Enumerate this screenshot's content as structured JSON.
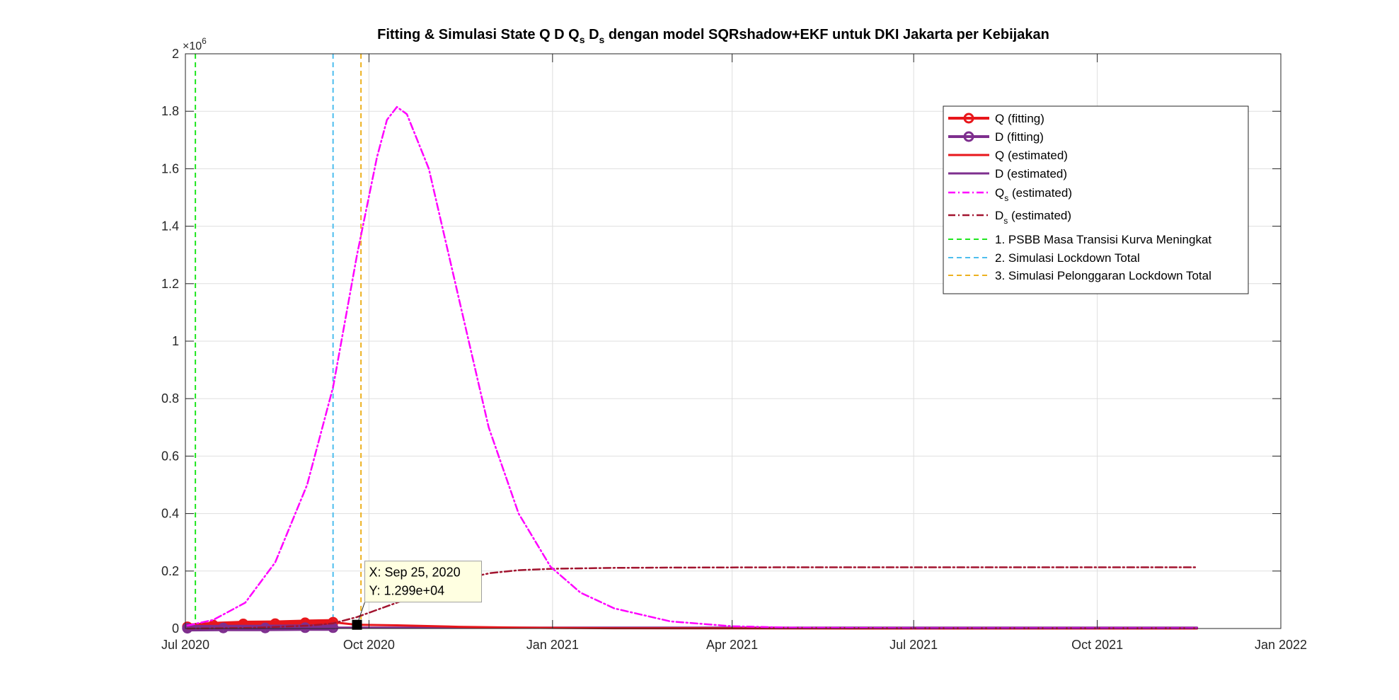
{
  "chart_data": {
    "type": "line",
    "title": {
      "prefix": "Fitting & Simulasi State  Q D Q",
      "sub1": "s",
      "mid": " D",
      "sub2": "s",
      "suffix": " dengan model SQRshadow+EKF untuk DKI Jakarta per Kebijakan"
    },
    "xlabel": "",
    "ylabel": "",
    "x_axis": {
      "type": "date",
      "range": [
        "2020-07-01",
        "2022-01-01"
      ],
      "ticks": [
        {
          "date": "2020-07-01",
          "label": "Jul 2020"
        },
        {
          "date": "2020-10-01",
          "label": "Oct 2020"
        },
        {
          "date": "2021-01-01",
          "label": "Jan 2021"
        },
        {
          "date": "2021-04-01",
          "label": "Apr 2021"
        },
        {
          "date": "2021-07-01",
          "label": "Jul 2021"
        },
        {
          "date": "2021-10-01",
          "label": "Oct 2021"
        },
        {
          "date": "2022-01-01",
          "label": "Jan 2022"
        }
      ]
    },
    "y_axis": {
      "range": [
        0,
        2
      ],
      "exponent_base": "×10",
      "exponent_power": "6",
      "ticks": [
        {
          "value": 0,
          "label": "0"
        },
        {
          "value": 0.2,
          "label": "0.2"
        },
        {
          "value": 0.4,
          "label": "0.4"
        },
        {
          "value": 0.6,
          "label": "0.6"
        },
        {
          "value": 0.8,
          "label": "0.8"
        },
        {
          "value": 1.0,
          "label": "1"
        },
        {
          "value": 1.2,
          "label": "1.2"
        },
        {
          "value": 1.4,
          "label": "1.4"
        },
        {
          "value": 1.6,
          "label": "1.6"
        },
        {
          "value": 1.8,
          "label": "1.8"
        },
        {
          "value": 2.0,
          "label": "2"
        }
      ]
    },
    "grid": true,
    "legend_position": "top-right",
    "series": [
      {
        "key": "q_fit",
        "name": "Q (fitting)",
        "name_sub": "",
        "name_suffix": "",
        "color": "#e8161b",
        "style": "solid-marker",
        "points": [
          [
            "2020-07-02",
            0.006
          ],
          [
            "2020-07-15",
            0.012
          ],
          [
            "2020-07-30",
            0.016
          ],
          [
            "2020-08-15",
            0.017
          ],
          [
            "2020-08-30",
            0.02
          ],
          [
            "2020-09-13",
            0.022
          ]
        ]
      },
      {
        "key": "d_fit",
        "name": "D (fitting)",
        "name_sub": "",
        "name_suffix": "",
        "color": "#7e2f8e",
        "style": "solid-marker",
        "points": [
          [
            "2020-07-02",
            0.001
          ],
          [
            "2020-07-20",
            0.002
          ],
          [
            "2020-08-10",
            0.002
          ],
          [
            "2020-08-30",
            0.003
          ],
          [
            "2020-09-13",
            0.003
          ]
        ]
      },
      {
        "key": "q_est",
        "name": "Q (estimated)",
        "name_sub": "",
        "name_suffix": "",
        "color": "#e8161b",
        "style": "solid",
        "points": [
          [
            "2020-07-02",
            0.006
          ],
          [
            "2020-08-01",
            0.015
          ],
          [
            "2020-09-01",
            0.02
          ],
          [
            "2020-09-13",
            0.022
          ],
          [
            "2020-09-25",
            0.013
          ],
          [
            "2020-10-15",
            0.011
          ],
          [
            "2020-11-15",
            0.006
          ],
          [
            "2020-12-15",
            0.003
          ],
          [
            "2021-02-01",
            0.001
          ],
          [
            "2021-06-01",
            0.0
          ],
          [
            "2021-11-20",
            0.0
          ]
        ]
      },
      {
        "key": "d_est",
        "name": "D (estimated)",
        "name_sub": "",
        "name_suffix": "",
        "color": "#7e2f8e",
        "style": "solid",
        "points": [
          [
            "2020-07-02",
            0.001
          ],
          [
            "2020-08-15",
            0.002
          ],
          [
            "2020-09-13",
            0.003
          ],
          [
            "2020-10-15",
            0.003
          ],
          [
            "2021-01-01",
            0.003
          ],
          [
            "2021-06-01",
            0.003
          ],
          [
            "2021-11-20",
            0.003
          ]
        ]
      },
      {
        "key": "qs_est",
        "name": "Q",
        "name_sub": "s",
        "name_suffix": " (estimated)",
        "color": "#ff00ff",
        "style": "dashdot",
        "points": [
          [
            "2020-07-02",
            0.01
          ],
          [
            "2020-07-15",
            0.03
          ],
          [
            "2020-07-31",
            0.09
          ],
          [
            "2020-08-15",
            0.23
          ],
          [
            "2020-08-31",
            0.5
          ],
          [
            "2020-09-13",
            0.84
          ],
          [
            "2020-09-25",
            1.3
          ],
          [
            "2020-10-05",
            1.64
          ],
          [
            "2020-10-10",
            1.77
          ],
          [
            "2020-10-15",
            1.815
          ],
          [
            "2020-10-20",
            1.79
          ],
          [
            "2020-10-31",
            1.6
          ],
          [
            "2020-11-15",
            1.15
          ],
          [
            "2020-11-30",
            0.7
          ],
          [
            "2020-12-15",
            0.4
          ],
          [
            "2020-12-31",
            0.215
          ],
          [
            "2021-01-15",
            0.125
          ],
          [
            "2021-02-01",
            0.07
          ],
          [
            "2021-03-01",
            0.025
          ],
          [
            "2021-04-01",
            0.008
          ],
          [
            "2021-05-01",
            0.003
          ],
          [
            "2021-07-01",
            0.001
          ],
          [
            "2021-11-20",
            0.001
          ]
        ]
      },
      {
        "key": "ds_est",
        "name": "D",
        "name_sub": "s",
        "name_suffix": " (estimated)",
        "color": "#a2142f",
        "style": "dashdot",
        "points": [
          [
            "2020-07-02",
            0.0
          ],
          [
            "2020-08-01",
            0.002
          ],
          [
            "2020-09-01",
            0.01
          ],
          [
            "2020-09-13",
            0.018
          ],
          [
            "2020-09-25",
            0.04
          ],
          [
            "2020-10-15",
            0.09
          ],
          [
            "2020-11-01",
            0.135
          ],
          [
            "2020-11-15",
            0.17
          ],
          [
            "2020-12-01",
            0.193
          ],
          [
            "2020-12-15",
            0.203
          ],
          [
            "2021-01-01",
            0.208
          ],
          [
            "2021-02-01",
            0.211
          ],
          [
            "2021-03-01",
            0.212
          ],
          [
            "2021-05-01",
            0.213
          ],
          [
            "2021-11-20",
            0.213
          ]
        ]
      }
    ],
    "policy_lines": [
      {
        "key": "vline1",
        "name": "1. PSBB Masa Transisi Kurva Meningkat",
        "color": "#1fe61f",
        "date": "2020-07-06"
      },
      {
        "key": "vline2",
        "name": "2. Simulasi Lockdown Total",
        "color": "#4dbeee",
        "date": "2020-09-13"
      },
      {
        "key": "vline3",
        "name": "3. Simulasi Pelonggaran Lockdown Total",
        "color": "#edb120",
        "date": "2020-09-27"
      }
    ],
    "datatip": {
      "x": "2020-09-25",
      "y": 0.01299,
      "line1": "X: Sep 25, 2020",
      "line2": "Y: 1.299e+04"
    }
  }
}
